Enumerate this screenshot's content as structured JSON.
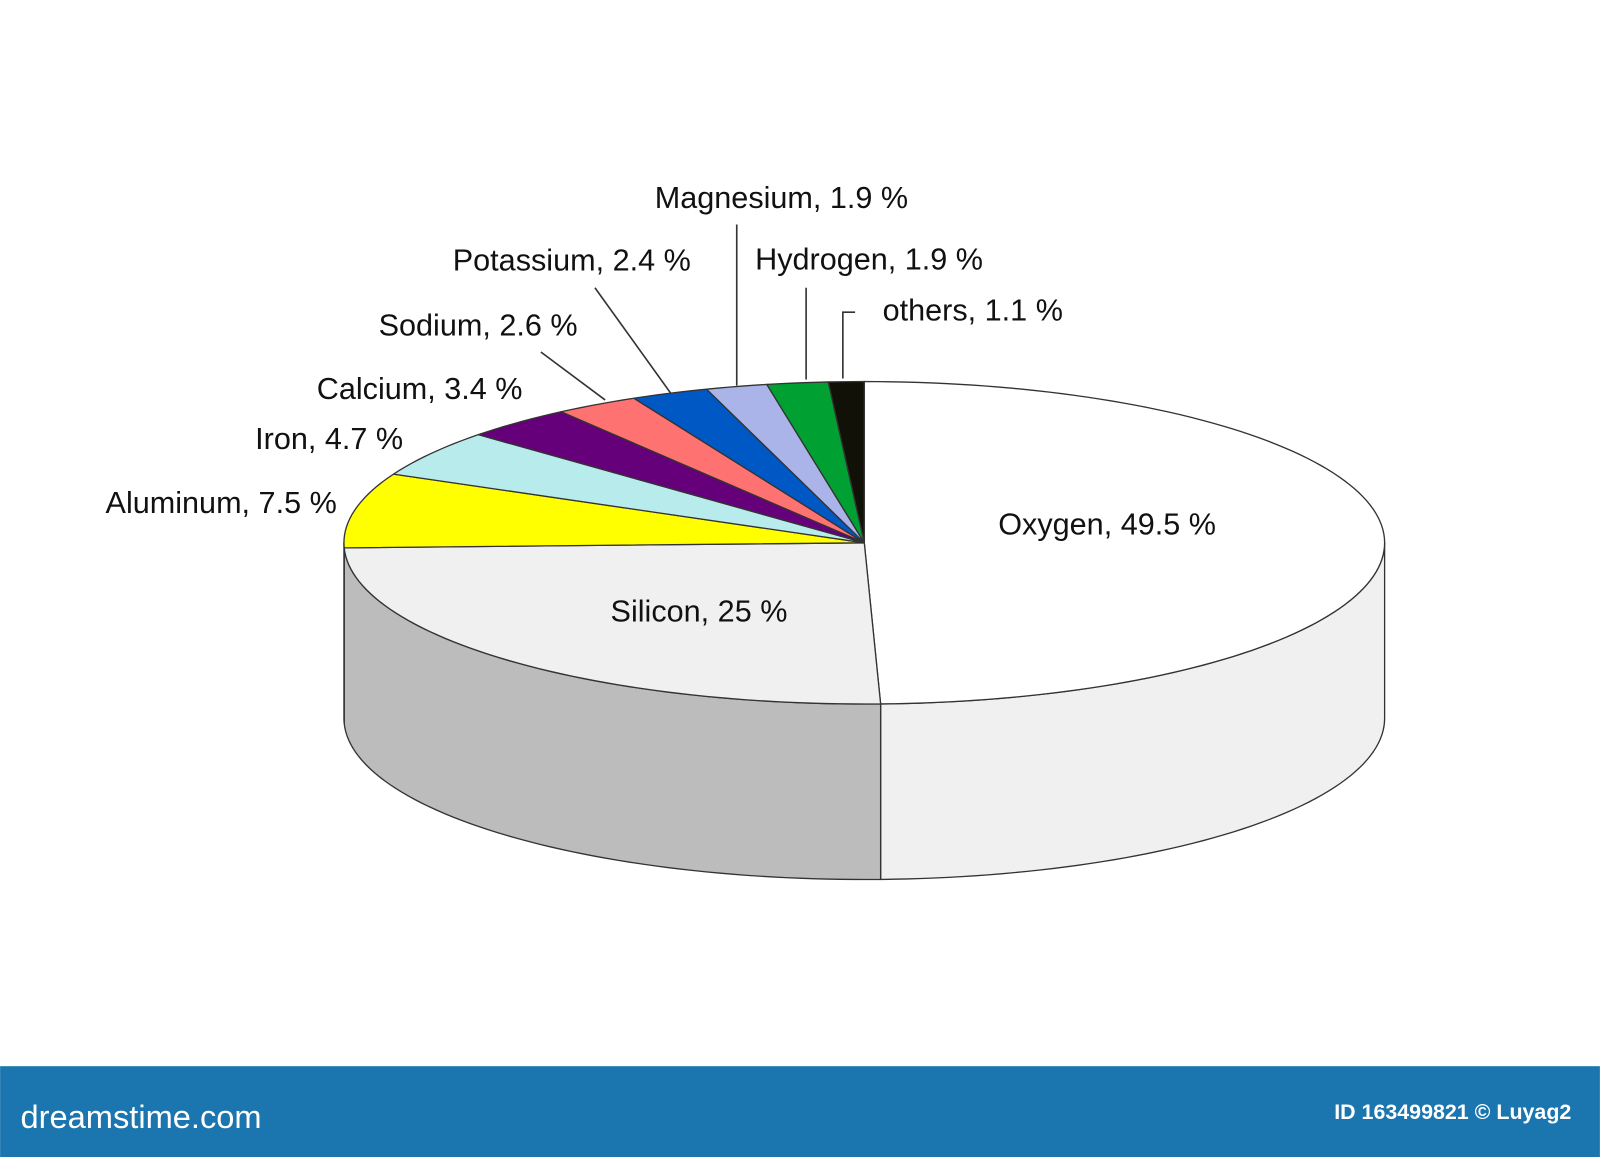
{
  "chart_data": {
    "type": "pie3d",
    "values": [
      49.5,
      25,
      7.5,
      4.7,
      3.4,
      2.6,
      2.4,
      1.9,
      1.9,
      1.1
    ],
    "value_labels": [
      "Oxygen, 49.5 %",
      "Silicon, 25 %",
      "Aluminum, 7.5 %",
      "Iron, 4.7 %",
      "Calcium, 3.4 %",
      "Sodium, 2.6 %",
      "Potassium, 2.4 %",
      "Magnesium, 1.9 %",
      "Hydrogen, 1.9 %",
      "others, 1.1 %"
    ],
    "colors": [
      "#ffffff",
      "#f0f0f0",
      "#ffff00",
      "#b8ecec",
      "#66007a",
      "#ff7272",
      "#0058c4",
      "#aab4e8",
      "#00a032",
      "#111108"
    ],
    "side_colors": [
      "#f0f0f0",
      "#bcbcbc",
      "#cccc00",
      "#93bdbd",
      "#520062",
      "#cc5b5b",
      "#00469d",
      "#8890ba",
      "#008028",
      "#0d0d06"
    ]
  },
  "footer": {
    "brand": "dreamstime.com",
    "id": "ID 163499821 © Luyag2"
  }
}
